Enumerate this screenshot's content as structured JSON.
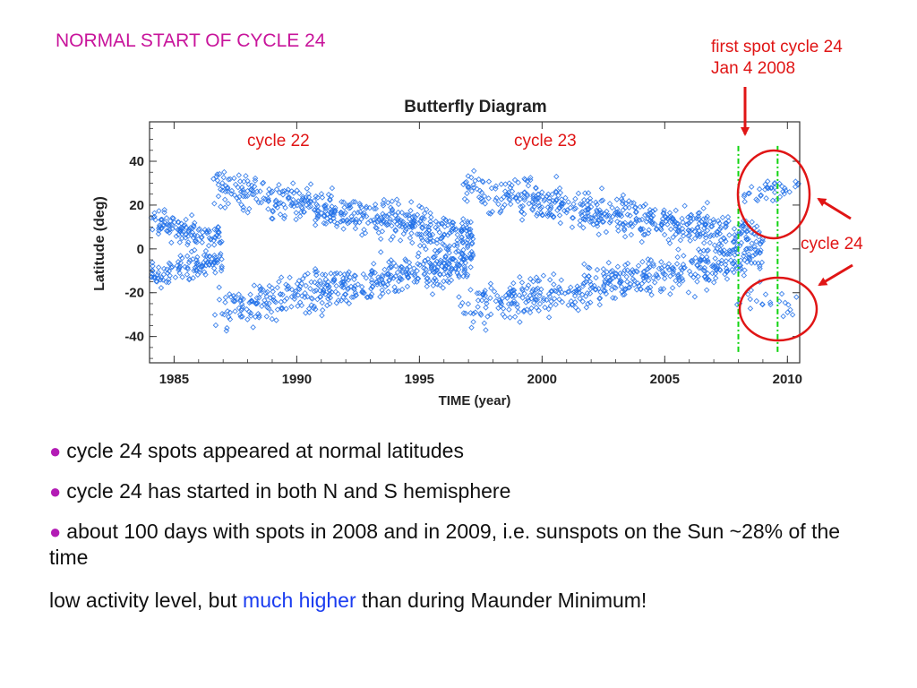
{
  "slide": {
    "title": "NORMAL START OF CYCLE 24",
    "first_spot_line1": "first spot cycle 24",
    "first_spot_line2": "Jan 4 2008",
    "cycle24_label": "cycle 24"
  },
  "chart_data": {
    "type": "scatter",
    "title": "Butterfly Diagram",
    "xlabel": "TIME (year)",
    "ylabel": "Latitude (deg)",
    "xlim": [
      1984,
      2010.5
    ],
    "ylim": [
      -52,
      58
    ],
    "xticks": [
      1985,
      1990,
      1995,
      2000,
      2005,
      2010
    ],
    "yticks": [
      -40,
      -20,
      0,
      20,
      40
    ],
    "marker_color": "#1f6fe8",
    "annotations": [
      {
        "text": "cycle 22",
        "color": "#e01515"
      },
      {
        "text": "cycle 23",
        "color": "#e01515"
      }
    ],
    "vertical_markers": {
      "years": [
        2008.0,
        2009.6
      ],
      "color": "#11d411",
      "style": "dash-dot"
    },
    "highlight_color": "#e01515",
    "cycles": [
      {
        "name": "cycle 22",
        "start": 1986.6,
        "end": 1997.2,
        "lat_start": 28,
        "lat_end": 6
      },
      {
        "name": "cycle 23",
        "start": 1996.6,
        "end": 2009.0,
        "lat_start": 28,
        "lat_end": 4
      },
      {
        "name": "cycle 24",
        "start": 2007.9,
        "end": 2010.5,
        "lat_start": 30,
        "lat_end": 24
      }
    ]
  },
  "bullets": [
    "cycle 24 spots appeared at normal latitudes",
    "cycle 24 has started in both N and S hemisphere",
    "about 100 days with spots in 2008 and in 2009, i.e. sunspots on the Sun ~28% of the time"
  ],
  "summary": {
    "before": "low activity level, but ",
    "highlight": "much higher",
    "after": " than during Maunder Minimum!"
  }
}
